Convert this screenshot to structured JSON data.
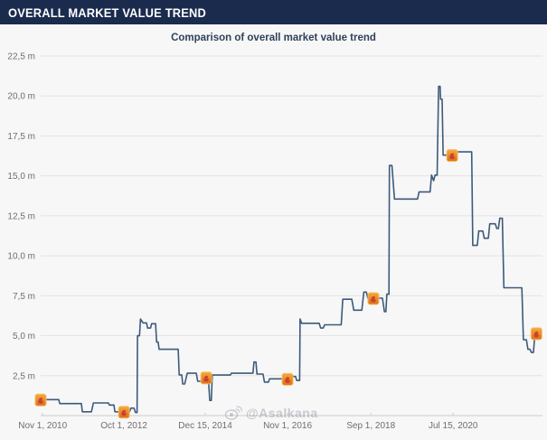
{
  "header": {
    "title": "OVERALL MARKET VALUE TREND"
  },
  "chart": {
    "title": "Comparison of overall market value trend"
  },
  "watermark": {
    "text": "@Asalkana",
    "icon": "weibo-logo"
  },
  "colors": {
    "header_bg": "#1a2b4d",
    "header_text": "#ffffff",
    "title_text": "#2f4257",
    "line": "#3d5a7a",
    "grid": "#e3e3e3",
    "axis": "#cccccc",
    "tick_text": "#6e6e6e",
    "marker_fill": "#f0892c",
    "marker_border": "#f6c05a",
    "marker_inner": "#c0392b"
  },
  "chart_data": {
    "type": "line",
    "title": "Comparison of overall market value trend",
    "unit": "millions (m)",
    "ylim": [
      0,
      22.5
    ],
    "grid": "horizontal",
    "legend": "none",
    "y_ticks": [
      {
        "label": "22,5 m",
        "value": 22.5
      },
      {
        "label": "20,0 m",
        "value": 20.0
      },
      {
        "label": "17,5 m",
        "value": 17.5
      },
      {
        "label": "15,0 m",
        "value": 15.0
      },
      {
        "label": "12,5 m",
        "value": 12.5
      },
      {
        "label": "10,0 m",
        "value": 10.0
      },
      {
        "label": "7,5 m",
        "value": 7.5
      },
      {
        "label": "5,0 m",
        "value": 5.0
      },
      {
        "label": "2,5 m",
        "value": 2.5
      }
    ],
    "x_ticks": [
      {
        "label": "Nov 1, 2010",
        "pos": 0.4
      },
      {
        "label": "Oct 1, 2012",
        "pos": 16.6
      },
      {
        "label": "Dec 15, 2014",
        "pos": 32.8
      },
      {
        "label": "Nov 1, 2016",
        "pos": 49.2
      },
      {
        "label": "Sep 1, 2018",
        "pos": 65.8
      },
      {
        "label": "Jul 15, 2020",
        "pos": 82.2
      }
    ],
    "series": [
      [
        0,
        1.0
      ],
      [
        3.6,
        1.0
      ],
      [
        3.8,
        0.75
      ],
      [
        8.1,
        0.75
      ],
      [
        8.3,
        0.24
      ],
      [
        10.1,
        0.24
      ],
      [
        10.5,
        0.79
      ],
      [
        13.5,
        0.79
      ],
      [
        13.7,
        0.66
      ],
      [
        14.6,
        0.66
      ],
      [
        14.8,
        0.24
      ],
      [
        17.7,
        0.24
      ],
      [
        18.0,
        0.47
      ],
      [
        18.6,
        0.47
      ],
      [
        18.9,
        0.19
      ],
      [
        19.2,
        0.19
      ],
      [
        19.3,
        5.0
      ],
      [
        19.7,
        5.0
      ],
      [
        19.9,
        6.05
      ],
      [
        20.4,
        5.8
      ],
      [
        21.1,
        5.8
      ],
      [
        21.3,
        5.48
      ],
      [
        21.9,
        5.48
      ],
      [
        22.1,
        5.75
      ],
      [
        22.9,
        5.75
      ],
      [
        23.1,
        4.6
      ],
      [
        23.4,
        4.6
      ],
      [
        23.6,
        4.15
      ],
      [
        27.4,
        4.15
      ],
      [
        27.6,
        2.55
      ],
      [
        28.1,
        2.55
      ],
      [
        28.3,
        1.98
      ],
      [
        28.7,
        1.98
      ],
      [
        29.2,
        2.65
      ],
      [
        31.0,
        2.65
      ],
      [
        31.3,
        2.15
      ],
      [
        32.4,
        2.15
      ],
      [
        32.7,
        2.38
      ],
      [
        33.4,
        2.38
      ],
      [
        33.7,
        0.95
      ],
      [
        34.0,
        0.95
      ],
      [
        34.2,
        2.54
      ],
      [
        37.8,
        2.54
      ],
      [
        38.0,
        2.65
      ],
      [
        42.3,
        2.65
      ],
      [
        42.5,
        3.35
      ],
      [
        42.9,
        3.35
      ],
      [
        43.1,
        2.6
      ],
      [
        44.3,
        2.6
      ],
      [
        44.6,
        2.1
      ],
      [
        45.4,
        2.1
      ],
      [
        45.6,
        2.3
      ],
      [
        49.4,
        2.3
      ],
      [
        49.9,
        2.45
      ],
      [
        50.8,
        2.45
      ],
      [
        51.0,
        2.2
      ],
      [
        51.6,
        2.2
      ],
      [
        51.7,
        6.05
      ],
      [
        52.0,
        5.78
      ],
      [
        55.5,
        5.78
      ],
      [
        55.8,
        5.48
      ],
      [
        56.3,
        5.48
      ],
      [
        56.6,
        5.68
      ],
      [
        59.9,
        5.68
      ],
      [
        60.2,
        7.28
      ],
      [
        62.0,
        7.28
      ],
      [
        62.4,
        6.6
      ],
      [
        64.0,
        6.6
      ],
      [
        64.4,
        7.73
      ],
      [
        64.9,
        7.73
      ],
      [
        65.2,
        7.35
      ],
      [
        68.1,
        7.35
      ],
      [
        68.5,
        6.5
      ],
      [
        68.8,
        6.5
      ],
      [
        69.0,
        7.6
      ],
      [
        69.4,
        7.6
      ],
      [
        69.5,
        15.65
      ],
      [
        70.0,
        15.65
      ],
      [
        70.5,
        13.55
      ],
      [
        75.1,
        13.55
      ],
      [
        75.4,
        14.0
      ],
      [
        77.6,
        14.0
      ],
      [
        77.9,
        15.05
      ],
      [
        78.3,
        14.7
      ],
      [
        78.6,
        15.05
      ],
      [
        79.0,
        15.05
      ],
      [
        79.3,
        20.6
      ],
      [
        79.6,
        20.6
      ],
      [
        79.7,
        19.8
      ],
      [
        80.0,
        19.8
      ],
      [
        80.2,
        16.3
      ],
      [
        82.3,
        16.3
      ],
      [
        82.6,
        16.5
      ],
      [
        85.9,
        16.5
      ],
      [
        86.1,
        10.65
      ],
      [
        87.0,
        10.65
      ],
      [
        87.3,
        11.55
      ],
      [
        88.1,
        11.55
      ],
      [
        88.4,
        11.1
      ],
      [
        89.2,
        11.1
      ],
      [
        89.5,
        12.0
      ],
      [
        90.6,
        12.0
      ],
      [
        90.9,
        11.7
      ],
      [
        91.2,
        11.7
      ],
      [
        91.5,
        12.35
      ],
      [
        92.0,
        12.35
      ],
      [
        92.3,
        8.0
      ],
      [
        95.9,
        8.0
      ],
      [
        96.2,
        4.75
      ],
      [
        96.8,
        4.75
      ],
      [
        97.1,
        4.15
      ],
      [
        97.5,
        4.15
      ],
      [
        97.8,
        3.95
      ],
      [
        98.2,
        3.95
      ],
      [
        98.5,
        5.15
      ],
      [
        99.2,
        5.15
      ]
    ],
    "markers": [
      {
        "pos": 0.0,
        "value": 1.0,
        "at": "Nov 1, 2010"
      },
      {
        "pos": 16.6,
        "value": 0.24,
        "at": "Oct 1, 2012"
      },
      {
        "pos": 33.0,
        "value": 2.38,
        "at": "Dec 15, 2014"
      },
      {
        "pos": 49.2,
        "value": 2.3,
        "at": "Nov 1, 2016"
      },
      {
        "pos": 66.3,
        "value": 7.35,
        "at": "Sep 1, 2018"
      },
      {
        "pos": 82.0,
        "value": 16.3,
        "at": "Jul 15, 2020"
      },
      {
        "pos": 98.8,
        "value": 5.15,
        "at": "series end"
      }
    ]
  }
}
